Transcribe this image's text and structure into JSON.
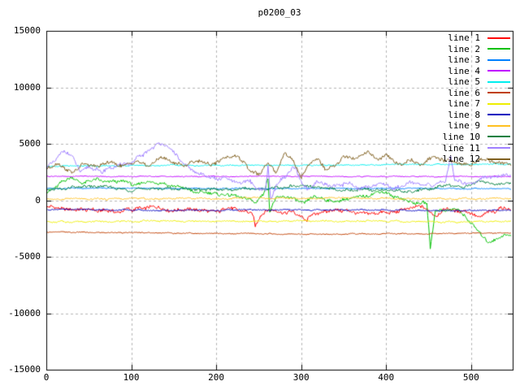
{
  "title": "p0200_03",
  "axes": {
    "x": {
      "min": 0,
      "max": 549,
      "tick_labels": [
        "0",
        "100",
        "200",
        "300",
        "400",
        "500"
      ],
      "tick_values": [
        0,
        100,
        200,
        300,
        400,
        500
      ]
    },
    "y": {
      "min": -15000,
      "max": 15000,
      "tick_labels": [
        "15000",
        "10000",
        "5000",
        "0",
        "-5000",
        "-10000",
        "-15000"
      ],
      "tick_values": [
        15000,
        10000,
        5000,
        0,
        -5000,
        -10000,
        -15000
      ]
    }
  },
  "style": {
    "background": "#ffffff",
    "border_color": "#000000",
    "grid_color": "#b4b4b4",
    "text_color": "#000000",
    "grid": "dashed"
  },
  "chart_data": {
    "type": "line",
    "title": "p0200_03",
    "xlabel": "",
    "ylabel": "",
    "xlim": [
      0,
      549
    ],
    "ylim": [
      -15000,
      15000
    ],
    "grid": true,
    "legend_position": "top-right-inside",
    "series": [
      {
        "name": "line 1",
        "color": "#ff0000",
        "noise": 260,
        "points": [
          [
            0,
            -600
          ],
          [
            20,
            -850
          ],
          [
            40,
            -700
          ],
          [
            60,
            -950
          ],
          [
            80,
            -1050
          ],
          [
            100,
            -800
          ],
          [
            120,
            -650
          ],
          [
            140,
            -800
          ],
          [
            160,
            -950
          ],
          [
            180,
            -850
          ],
          [
            200,
            -950
          ],
          [
            215,
            -700
          ],
          [
            230,
            -900
          ],
          [
            243,
            -1300
          ],
          [
            246,
            -2400
          ],
          [
            252,
            -1300
          ],
          [
            262,
            -900
          ],
          [
            275,
            -1050
          ],
          [
            290,
            -1000
          ],
          [
            300,
            -1400
          ],
          [
            306,
            -1900
          ],
          [
            312,
            -1200
          ],
          [
            330,
            -1000
          ],
          [
            350,
            -900
          ],
          [
            370,
            -1100
          ],
          [
            390,
            -1200
          ],
          [
            410,
            -1000
          ],
          [
            425,
            -700
          ],
          [
            440,
            -600
          ],
          [
            452,
            -900
          ],
          [
            460,
            -1400
          ],
          [
            470,
            -800
          ],
          [
            485,
            -900
          ],
          [
            500,
            -1100
          ],
          [
            510,
            -1500
          ],
          [
            520,
            -1000
          ],
          [
            535,
            -800
          ],
          [
            547,
            -700
          ]
        ]
      },
      {
        "name": "line 2",
        "color": "#00c000",
        "noise": 230,
        "points": [
          [
            0,
            600
          ],
          [
            15,
            1400
          ],
          [
            30,
            2000
          ],
          [
            45,
            1500
          ],
          [
            60,
            1900
          ],
          [
            75,
            1600
          ],
          [
            90,
            1800
          ],
          [
            105,
            1300
          ],
          [
            120,
            1700
          ],
          [
            135,
            1500
          ],
          [
            150,
            1200
          ],
          [
            165,
            900
          ],
          [
            180,
            700
          ],
          [
            195,
            600
          ],
          [
            210,
            500
          ],
          [
            225,
            400
          ],
          [
            240,
            100
          ],
          [
            246,
            -300
          ],
          [
            255,
            500
          ],
          [
            261,
            2000
          ],
          [
            263,
            -1100
          ],
          [
            270,
            300
          ],
          [
            285,
            300
          ],
          [
            297,
            -100
          ],
          [
            304,
            -200
          ],
          [
            315,
            300
          ],
          [
            330,
            100
          ],
          [
            345,
            -100
          ],
          [
            360,
            200
          ],
          [
            375,
            300
          ],
          [
            395,
            800
          ],
          [
            410,
            300
          ],
          [
            425,
            0
          ],
          [
            440,
            -200
          ],
          [
            448,
            -300
          ],
          [
            452,
            -4200
          ],
          [
            458,
            -1000
          ],
          [
            470,
            -800
          ],
          [
            485,
            -900
          ],
          [
            500,
            -2000
          ],
          [
            510,
            -2900
          ],
          [
            520,
            -3700
          ],
          [
            530,
            -3500
          ],
          [
            540,
            -3100
          ],
          [
            547,
            -3200
          ]
        ]
      },
      {
        "name": "line 3",
        "color": "#0080ff",
        "noise": 70,
        "points": [
          [
            0,
            1050
          ],
          [
            100,
            1070
          ],
          [
            200,
            1030
          ],
          [
            300,
            1050
          ],
          [
            400,
            1040
          ],
          [
            547,
            1030
          ]
        ]
      },
      {
        "name": "line 4",
        "color": "#c000ff",
        "noise": 60,
        "points": [
          [
            0,
            2120
          ],
          [
            150,
            2100
          ],
          [
            300,
            2120
          ],
          [
            450,
            2100
          ],
          [
            547,
            2110
          ]
        ]
      },
      {
        "name": "line 5",
        "color": "#00eeee",
        "noise": 80,
        "points": [
          [
            0,
            3000
          ],
          [
            150,
            3100
          ],
          [
            300,
            3080
          ],
          [
            450,
            3180
          ],
          [
            547,
            3200
          ]
        ]
      },
      {
        "name": "line 6",
        "color": "#c04000",
        "noise": 70,
        "points": [
          [
            0,
            -2820
          ],
          [
            150,
            -2900
          ],
          [
            300,
            -3000
          ],
          [
            450,
            -2950
          ],
          [
            547,
            -2900
          ]
        ]
      },
      {
        "name": "line 7",
        "color": "#eeee00",
        "noise": 110,
        "points": [
          [
            0,
            -1900
          ],
          [
            150,
            -1850
          ],
          [
            300,
            -1830
          ],
          [
            450,
            -1900
          ],
          [
            547,
            -1880
          ]
        ]
      },
      {
        "name": "line 8",
        "color": "#0000c0",
        "noise": 90,
        "points": [
          [
            0,
            -800
          ],
          [
            150,
            -900
          ],
          [
            300,
            -850
          ],
          [
            450,
            -900
          ],
          [
            547,
            -870
          ]
        ]
      },
      {
        "name": "line 9",
        "color": "#ffc020",
        "noise": 110,
        "points": [
          [
            0,
            100
          ],
          [
            150,
            150
          ],
          [
            300,
            200
          ],
          [
            450,
            120
          ],
          [
            547,
            150
          ]
        ]
      },
      {
        "name": "line 10",
        "color": "#008040",
        "noise": 210,
        "points": [
          [
            0,
            800
          ],
          [
            30,
            1100
          ],
          [
            60,
            1250
          ],
          [
            90,
            950
          ],
          [
            120,
            1000
          ],
          [
            150,
            1050
          ],
          [
            180,
            900
          ],
          [
            210,
            1000
          ],
          [
            240,
            950
          ],
          [
            270,
            1150
          ],
          [
            300,
            1250
          ],
          [
            330,
            1000
          ],
          [
            360,
            950
          ],
          [
            390,
            900
          ],
          [
            420,
            800
          ],
          [
            450,
            1000
          ],
          [
            470,
            1350
          ],
          [
            490,
            1200
          ],
          [
            510,
            1650
          ],
          [
            530,
            1400
          ],
          [
            547,
            1500
          ]
        ]
      },
      {
        "name": "line 11",
        "color": "#a080ff",
        "noise": 280,
        "points": [
          [
            0,
            3100
          ],
          [
            10,
            3500
          ],
          [
            22,
            4500
          ],
          [
            30,
            3800
          ],
          [
            40,
            2500
          ],
          [
            50,
            2900
          ],
          [
            62,
            2500
          ],
          [
            75,
            2800
          ],
          [
            88,
            3200
          ],
          [
            100,
            3400
          ],
          [
            112,
            3900
          ],
          [
            125,
            4600
          ],
          [
            138,
            5100
          ],
          [
            148,
            4400
          ],
          [
            158,
            3500
          ],
          [
            170,
            2700
          ],
          [
            185,
            2200
          ],
          [
            200,
            1800
          ],
          [
            212,
            2000
          ],
          [
            225,
            1500
          ],
          [
            238,
            1700
          ],
          [
            250,
            1000
          ],
          [
            258,
            800
          ],
          [
            261,
            3100
          ],
          [
            264,
            300
          ],
          [
            272,
            1500
          ],
          [
            283,
            2300
          ],
          [
            291,
            2900
          ],
          [
            300,
            1700
          ],
          [
            308,
            900
          ],
          [
            318,
            1500
          ],
          [
            335,
            1200
          ],
          [
            352,
            1500
          ],
          [
            370,
            1100
          ],
          [
            390,
            1400
          ],
          [
            410,
            1100
          ],
          [
            428,
            1500
          ],
          [
            445,
            1200
          ],
          [
            460,
            1500
          ],
          [
            470,
            1700
          ],
          [
            476,
            3900
          ],
          [
            481,
            1900
          ],
          [
            493,
            1400
          ],
          [
            505,
            1700
          ],
          [
            518,
            2000
          ],
          [
            532,
            2200
          ],
          [
            547,
            2300
          ]
        ]
      },
      {
        "name": "line 12",
        "color": "#806020",
        "noise": 260,
        "points": [
          [
            0,
            2800
          ],
          [
            15,
            3200
          ],
          [
            30,
            2500
          ],
          [
            45,
            3200
          ],
          [
            60,
            2900
          ],
          [
            75,
            3400
          ],
          [
            90,
            3000
          ],
          [
            105,
            3500
          ],
          [
            120,
            3100
          ],
          [
            135,
            3800
          ],
          [
            150,
            3400
          ],
          [
            165,
            3100
          ],
          [
            180,
            3500
          ],
          [
            195,
            3200
          ],
          [
            210,
            3700
          ],
          [
            225,
            3900
          ],
          [
            240,
            2600
          ],
          [
            250,
            2300
          ],
          [
            260,
            3400
          ],
          [
            270,
            2500
          ],
          [
            280,
            4100
          ],
          [
            290,
            3600
          ],
          [
            300,
            2200
          ],
          [
            310,
            3300
          ],
          [
            320,
            3700
          ],
          [
            330,
            2600
          ],
          [
            340,
            3100
          ],
          [
            350,
            3900
          ],
          [
            360,
            3600
          ],
          [
            370,
            4100
          ],
          [
            380,
            4300
          ],
          [
            390,
            3700
          ],
          [
            400,
            4000
          ],
          [
            410,
            3400
          ],
          [
            420,
            3200
          ],
          [
            430,
            3500
          ],
          [
            440,
            3100
          ],
          [
            450,
            3600
          ],
          [
            460,
            3700
          ],
          [
            470,
            3400
          ],
          [
            480,
            3500
          ],
          [
            490,
            3300
          ],
          [
            500,
            3200
          ],
          [
            510,
            3500
          ],
          [
            520,
            3600
          ],
          [
            530,
            3300
          ],
          [
            547,
            3300
          ]
        ]
      }
    ]
  }
}
